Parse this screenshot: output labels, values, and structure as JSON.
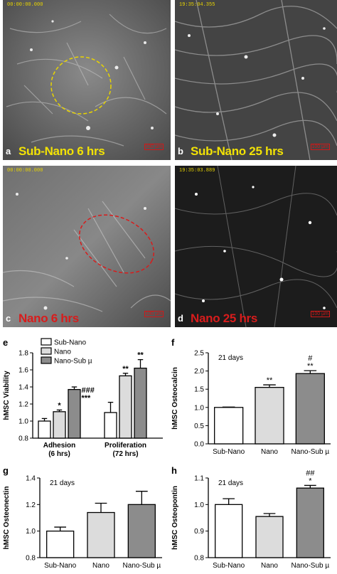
{
  "panels": [
    {
      "letter": "a",
      "timestamp": "00:00:00.000",
      "caption": "Sub-Nano 6 hrs",
      "scale": "100 µm",
      "caption_color": "#f2e205",
      "bg": "#6a6a6a"
    },
    {
      "letter": "b",
      "timestamp": "19:35:04.355",
      "caption": "Sub-Nano 25 hrs",
      "scale": "100 µm",
      "caption_color": "#f2e205",
      "bg": "#4a4a4a"
    },
    {
      "letter": "c",
      "timestamp": "00:00:00.000",
      "caption": "Nano 6 hrs",
      "scale": "100 µm",
      "caption_color": "#d81c1c",
      "bg": "#5f5f5f"
    },
    {
      "letter": "d",
      "timestamp": "19:35:03.889",
      "caption": "Nano 25 hrs",
      "scale": "100 µm",
      "caption_color": "#d81c1c",
      "bg": "#1e1e1e"
    }
  ],
  "chart_data": [
    {
      "panel": "e",
      "type": "bar",
      "ylabel": "hMSC Viability",
      "ylim": [
        0.8,
        1.8
      ],
      "yticks": [
        "0.8",
        "1.0",
        "1.2",
        "1.4",
        "1.6",
        "1.8"
      ],
      "groups": [
        "Adhesion\n(6 hrs)",
        "Proliferation\n(72 hrs)"
      ],
      "series": [
        {
          "name": "Sub-Nano",
          "values": [
            1.0,
            1.1
          ],
          "errors": [
            0.03,
            0.12
          ],
          "color": "#ffffff"
        },
        {
          "name": "Nano",
          "values": [
            1.11,
            1.53
          ],
          "errors": [
            0.02,
            0.03
          ],
          "color": "#dcdcdc"
        },
        {
          "name": "Nano-Sub µ",
          "values": [
            1.37,
            1.62
          ],
          "errors": [
            0.03,
            0.1
          ],
          "color": "#8c8c8c"
        }
      ],
      "annotations": [
        {
          "group": 0,
          "series": 1,
          "text": "*"
        },
        {
          "group": 0,
          "series": 2,
          "text": "###"
        },
        {
          "group": 0,
          "series": 2,
          "text": "***"
        },
        {
          "group": 1,
          "series": 1,
          "text": "**"
        },
        {
          "group": 1,
          "series": 2,
          "text": "**"
        }
      ]
    },
    {
      "panel": "f",
      "type": "bar",
      "note": "21 days",
      "ylabel": "hMSC Osteocalcin",
      "ylim": [
        0.0,
        2.5
      ],
      "yticks": [
        "0.0",
        "0.5",
        "1.0",
        "1.5",
        "2.0",
        "2.5"
      ],
      "categories": [
        "Sub-Nano",
        "Nano",
        "Nano-Sub µ"
      ],
      "values": [
        1.0,
        1.55,
        1.93
      ],
      "errors": [
        0.01,
        0.07,
        0.08
      ],
      "colors": [
        "#ffffff",
        "#dcdcdc",
        "#8c8c8c"
      ],
      "annotations": [
        {
          "index": 1,
          "lines": [
            "**"
          ]
        },
        {
          "index": 2,
          "lines": [
            "#",
            "**"
          ]
        }
      ]
    },
    {
      "panel": "g",
      "type": "bar",
      "note": "21 days",
      "ylabel": "hMSC Osteonectin",
      "ylim": [
        0.8,
        1.4
      ],
      "yticks": [
        "0.8",
        "1.0",
        "1.2",
        "1.4"
      ],
      "categories": [
        "Sub-Nano",
        "Nano",
        "Nano-Sub µ"
      ],
      "values": [
        1.0,
        1.14,
        1.2
      ],
      "errors": [
        0.03,
        0.07,
        0.1
      ],
      "colors": [
        "#ffffff",
        "#dcdcdc",
        "#8c8c8c"
      ],
      "annotations": []
    },
    {
      "panel": "h",
      "type": "bar",
      "note": "21 days",
      "ylabel": "hMSC Osteopontin",
      "ylim": [
        0.8,
        1.1
      ],
      "yticks": [
        "0.8",
        "0.9",
        "1.0",
        "1.1"
      ],
      "categories": [
        "Sub-Nano",
        "Nano",
        "Nano-Sub µ"
      ],
      "values": [
        1.0,
        0.955,
        1.062
      ],
      "errors": [
        0.022,
        0.011,
        0.01
      ],
      "colors": [
        "#ffffff",
        "#dcdcdc",
        "#8c8c8c"
      ],
      "annotations": [
        {
          "index": 2,
          "lines": [
            "##",
            "*"
          ]
        }
      ]
    }
  ]
}
